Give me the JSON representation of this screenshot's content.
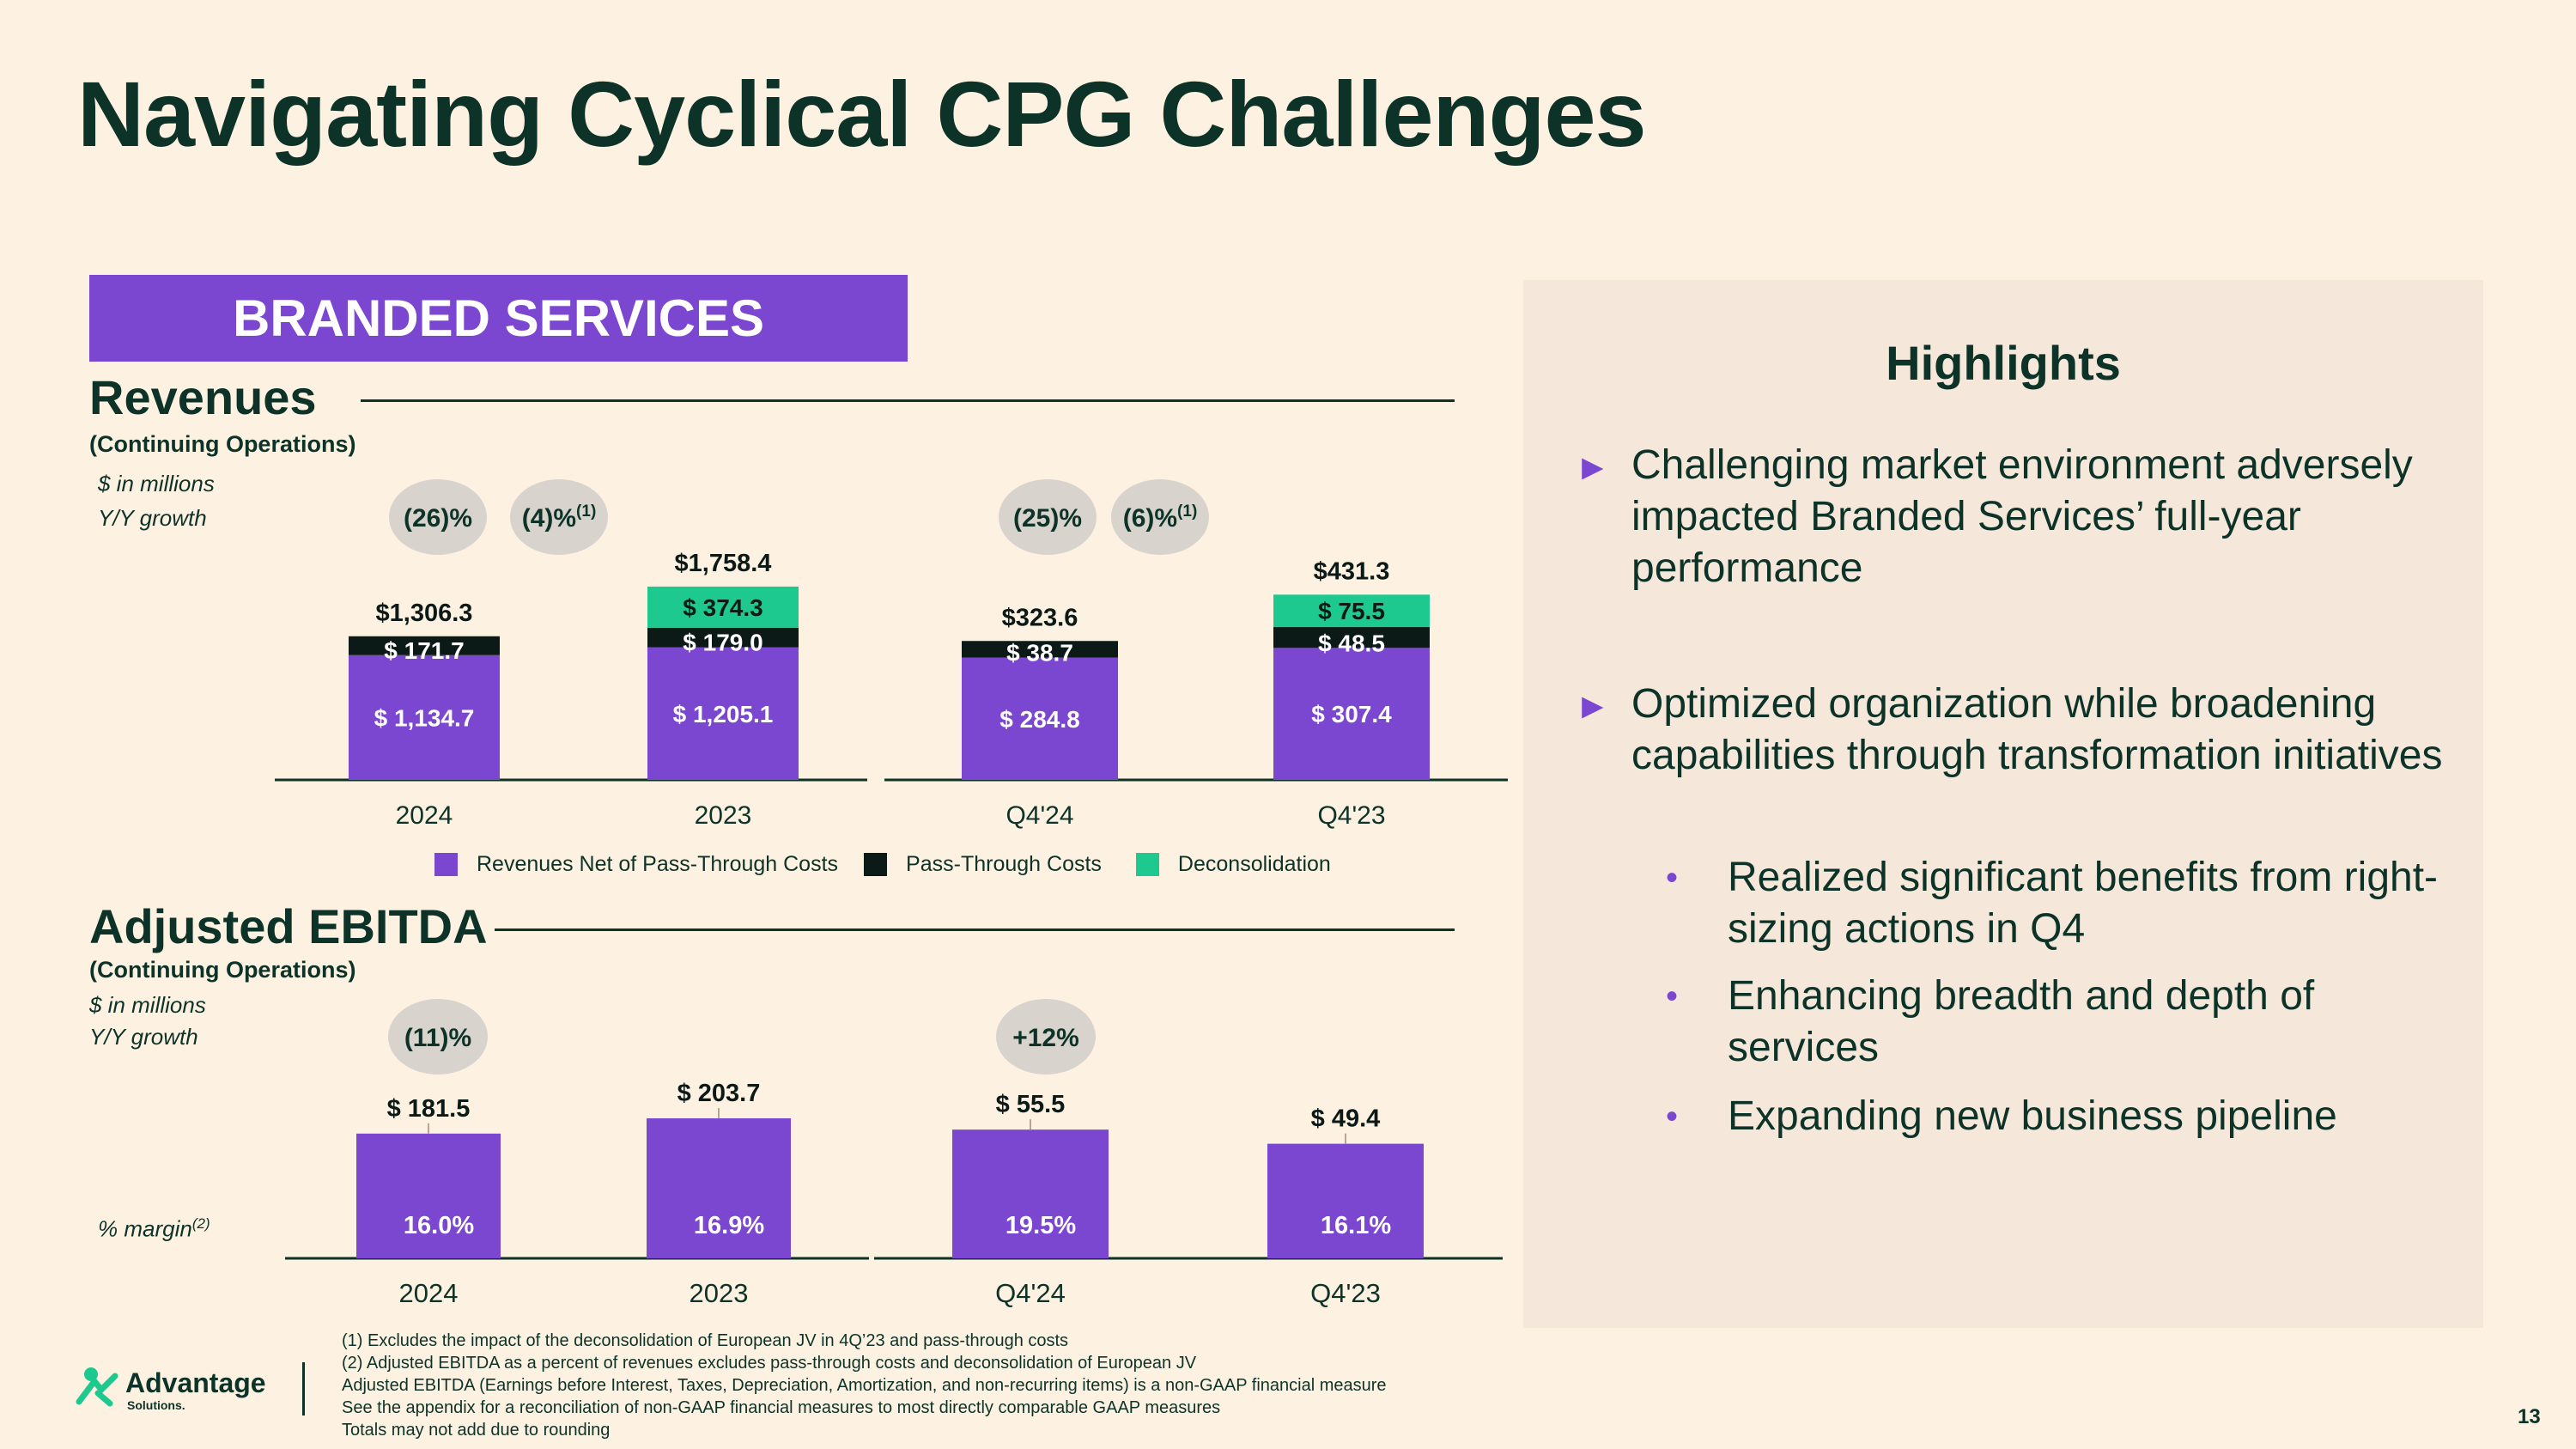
{
  "title": "Navigating Cyclical CPG Challenges",
  "banner": "BRANDED SERVICES",
  "revenues": {
    "title": "Revenues",
    "subtitle": "(Continuing Operations)",
    "units": "$ in millions",
    "growth_label": "Y/Y growth"
  },
  "ebitda": {
    "title": "Adjusted EBITDA",
    "subtitle": "(Continuing Operations)",
    "units": "$ in millions",
    "growth_label": "Y/Y growth",
    "margin_label": "% margin",
    "margin_sup": "(2)"
  },
  "chart_data": [
    {
      "type": "bar",
      "stacked": true,
      "title": "Revenues",
      "categories": [
        "2024",
        "2023",
        "Q4'24",
        "Q4'23"
      ],
      "series": [
        {
          "name": "Revenues Net of Pass-Through Costs",
          "color": "#7b46d0",
          "values": [
            1134.7,
            1205.1,
            284.8,
            307.4
          ],
          "labels": [
            "$ 1,134.7",
            "$ 1,205.1",
            "$ 284.8",
            "$ 307.4"
          ]
        },
        {
          "name": "Pass-Through Costs",
          "color": "#0b1a16",
          "values": [
            171.7,
            179.0,
            38.7,
            48.5
          ],
          "labels": [
            "$ 171.7",
            "$ 179.0",
            "$ 38.7",
            "$ 48.5"
          ]
        },
        {
          "name": "Deconsolidation",
          "color": "#1ec98f",
          "values": [
            0,
            374.3,
            0,
            75.5
          ],
          "labels": [
            "",
            "$ 374.3",
            "",
            "$ 75.5"
          ]
        }
      ],
      "totals": [
        "$1,306.3",
        "$1,758.4",
        "$323.6",
        "$431.3"
      ],
      "growth": [
        {
          "text": "(26)%",
          "sup": ""
        },
        {
          "text": "(4)%",
          "sup": "(1)"
        },
        {
          "text": "(25)%",
          "sup": ""
        },
        {
          "text": "(6)%",
          "sup": "(1)"
        }
      ]
    },
    {
      "type": "bar",
      "title": "Adjusted EBITDA",
      "categories": [
        "2024",
        "2023",
        "Q4'24",
        "Q4'23"
      ],
      "values": [
        181.5,
        203.7,
        55.5,
        49.4
      ],
      "value_labels": [
        "$ 181.5",
        "$ 203.7",
        "$ 55.5",
        "$ 49.4"
      ],
      "margins": [
        "16.0%",
        "16.9%",
        "19.5%",
        "16.1%"
      ],
      "growth": [
        "(11)%",
        "+12%"
      ]
    }
  ],
  "legend": [
    {
      "label": "Revenues Net of Pass-Through Costs",
      "color": "#7b46d0"
    },
    {
      "label": "Pass-Through Costs",
      "color": "#0b1a16"
    },
    {
      "label": "Deconsolidation",
      "color": "#1ec98f"
    }
  ],
  "highlights": {
    "title": "Highlights",
    "items": [
      {
        "text": "Challenging market environment adversely impacted Branded Services’ full-year performance",
        "subitems": []
      },
      {
        "text": "Optimized organization while broadening capabilities through transformation initiatives",
        "subitems": [
          "Realized significant benefits from right-sizing actions in Q4",
          "Enhancing breadth and depth of services",
          "Expanding new business pipeline"
        ]
      }
    ]
  },
  "footnotes": [
    "(1)  Excludes the impact of the deconsolidation of European JV in 4Q’23 and pass-through costs",
    "(2)  Adjusted EBITDA as a percent of revenues excludes pass-through costs and deconsolidation of European JV",
    "Adjusted EBITDA (Earnings before Interest, Taxes, Depreciation, Amortization, and non-recurring items) is a non-GAAP financial measure",
    "See the appendix for a reconciliation of non-GAAP financial measures to most directly comparable GAAP measures",
    "Totals may not add due to rounding"
  ],
  "logo": {
    "name": "Advantage",
    "sub": "Solutions.",
    "color": "#1ec98f"
  },
  "page_number": "13",
  "colors": {
    "dark_green": "#0d3328",
    "purple": "#7b46d0",
    "teal": "#1ec98f",
    "bubble": "#d9d3cd"
  }
}
